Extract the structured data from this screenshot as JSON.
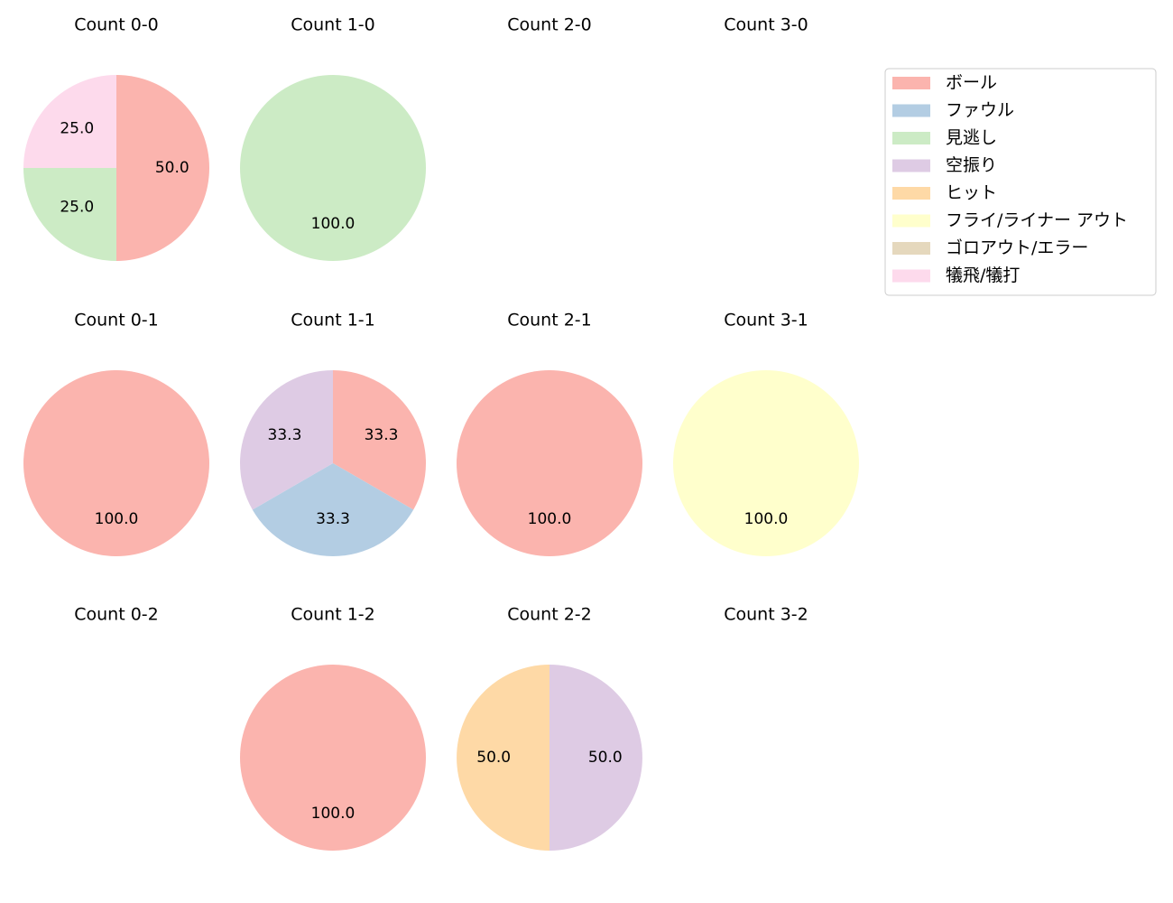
{
  "chart_data": {
    "type": "pie",
    "legend": {
      "placement": "upper-right",
      "entries": [
        {
          "label": "ボール",
          "color": "#fbb4ae"
        },
        {
          "label": "ファウル",
          "color": "#b3cde3"
        },
        {
          "label": "見逃し",
          "color": "#ccebc5"
        },
        {
          "label": "空振り",
          "color": "#decbe4"
        },
        {
          "label": "ヒット",
          "color": "#fed9a6"
        },
        {
          "label": "フライ/ライナー アウト",
          "color": "#ffffcc"
        },
        {
          "label": "ゴロアウト/エラー",
          "color": "#e5d8bd"
        },
        {
          "label": "犠飛/犠打",
          "color": "#fddaec"
        }
      ]
    },
    "panels": [
      {
        "title": "Count 0-0",
        "slices": [
          {
            "category": "ボール",
            "value": 50.0,
            "label": "50.0"
          },
          {
            "category": "見逃し",
            "value": 25.0,
            "label": "25.0"
          },
          {
            "category": "犠飛/犠打",
            "value": 25.0,
            "label": "25.0"
          }
        ]
      },
      {
        "title": "Count 1-0",
        "slices": [
          {
            "category": "見逃し",
            "value": 100.0,
            "label": "100.0"
          }
        ]
      },
      {
        "title": "Count 2-0",
        "slices": []
      },
      {
        "title": "Count 3-0",
        "slices": []
      },
      {
        "title": "Count 0-1",
        "slices": [
          {
            "category": "ボール",
            "value": 100.0,
            "label": "100.0"
          }
        ]
      },
      {
        "title": "Count 1-1",
        "slices": [
          {
            "category": "ボール",
            "value": 33.3,
            "label": "33.3"
          },
          {
            "category": "ファウル",
            "value": 33.3,
            "label": "33.3"
          },
          {
            "category": "空振り",
            "value": 33.3,
            "label": "33.3"
          }
        ]
      },
      {
        "title": "Count 2-1",
        "slices": [
          {
            "category": "ボール",
            "value": 100.0,
            "label": "100.0"
          }
        ]
      },
      {
        "title": "Count 3-1",
        "slices": [
          {
            "category": "フライ/ライナー アウト",
            "value": 100.0,
            "label": "100.0"
          }
        ]
      },
      {
        "title": "Count 0-2",
        "slices": []
      },
      {
        "title": "Count 1-2",
        "slices": [
          {
            "category": "ボール",
            "value": 100.0,
            "label": "100.0"
          }
        ]
      },
      {
        "title": "Count 2-2",
        "slices": [
          {
            "category": "空振り",
            "value": 50.0,
            "label": "50.0"
          },
          {
            "category": "ヒット",
            "value": 50.0,
            "label": "50.0"
          }
        ]
      },
      {
        "title": "Count 3-2",
        "slices": []
      }
    ]
  }
}
